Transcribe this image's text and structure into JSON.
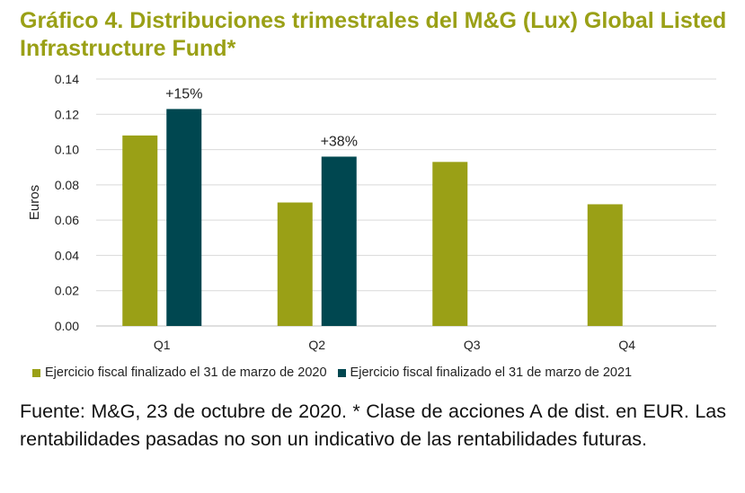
{
  "title": "Gráfico 4. Distribuciones trimestrales del M&G (Lux) Global Listed Infrastructure Fund*",
  "colors": {
    "title": "#9aa016",
    "series_2020": "#9aa016",
    "series_2021": "#004750",
    "grid": "#d9d9d9"
  },
  "chart_data": {
    "type": "bar",
    "title": "",
    "xlabel": "",
    "ylabel": "Euros",
    "categories": [
      "Q1",
      "Q2",
      "Q3",
      "Q4"
    ],
    "series": [
      {
        "name": "Ejercicio fiscal finalizado el 31 de marzo de 2020",
        "values": [
          0.108,
          0.07,
          0.093,
          0.069
        ]
      },
      {
        "name": "Ejercicio fiscal finalizado el 31 de marzo de 2021",
        "values": [
          0.123,
          0.096,
          null,
          null
        ]
      }
    ],
    "yticks": [
      "0.00",
      "0.02",
      "0.04",
      "0.06",
      "0.08",
      "0.10",
      "0.12",
      "0.14"
    ],
    "ylim": [
      0,
      0.14
    ],
    "grid": true,
    "legend_position": "bottom",
    "annotations": [
      {
        "category": "Q1",
        "text": "+15%"
      },
      {
        "category": "Q2",
        "text": "+38%"
      }
    ]
  },
  "source": "Fuente: M&G, 23 de octubre de 2020. * Clase de acciones A de dist. en EUR. Las rentabilidades pasadas no son un indicativo de las rentabilidades futuras."
}
